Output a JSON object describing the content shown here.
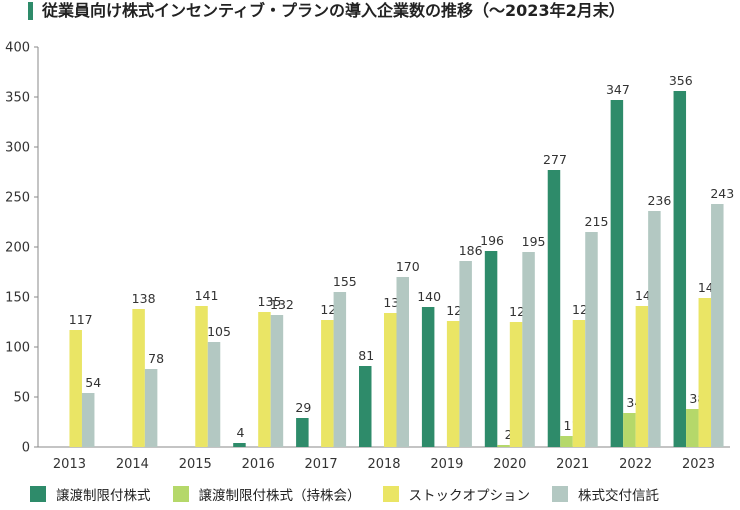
{
  "title": "従業員向け株式インセンティブ・プランの導入企業数の推移（〜2023年2月末）",
  "chart_data": {
    "type": "bar",
    "categories": [
      "2013",
      "2014",
      "2015",
      "2016",
      "2017",
      "2018",
      "2019",
      "2020",
      "2021",
      "2022",
      "2023"
    ],
    "y_ticks": [
      "0",
      "50",
      "100",
      "150",
      "200",
      "250",
      "300",
      "350",
      "400"
    ],
    "ylim": [
      0,
      400
    ],
    "grid": false,
    "legend_position": "bottom",
    "series": [
      {
        "name": "譲渡制限付株式",
        "color": "#2e8b6a",
        "values": [
          null,
          null,
          null,
          4,
          29,
          81,
          140,
          196,
          277,
          347,
          356
        ]
      },
      {
        "name": "譲渡制限付株式（持株会）",
        "color": "#b5d86a",
        "values": [
          null,
          null,
          null,
          null,
          null,
          null,
          null,
          2,
          11,
          34,
          38
        ]
      },
      {
        "name": "ストックオプション",
        "color": "#eae565",
        "values": [
          117,
          138,
          141,
          135,
          127,
          134,
          126,
          125,
          127,
          141,
          149
        ]
      },
      {
        "name": "株式交付信託",
        "color": "#b3c8c2",
        "values": [
          54,
          78,
          105,
          132,
          155,
          170,
          186,
          195,
          215,
          236,
          243
        ]
      }
    ]
  }
}
